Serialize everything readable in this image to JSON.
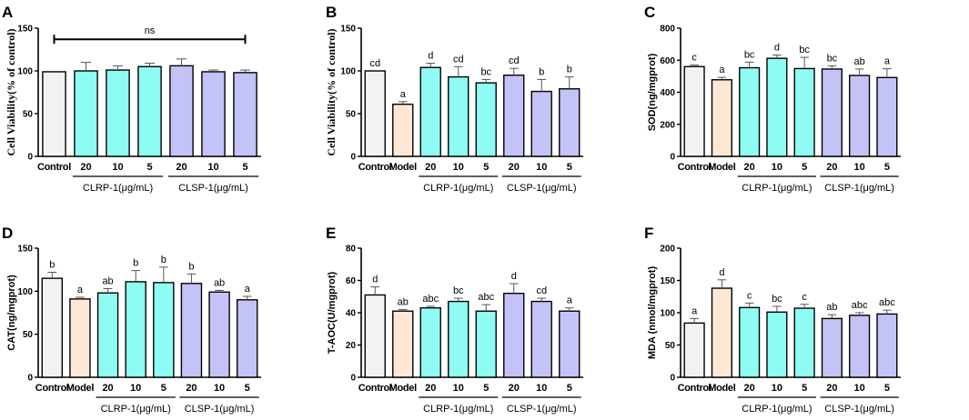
{
  "colors": {
    "control": "#f2f2f2",
    "model": "#fde8d6",
    "clrp": "#8ffcf4",
    "clsp": "#c4c3f7",
    "edge": "#000000",
    "error": "#555555"
  },
  "chart_data": [
    {
      "panel": "A",
      "type": "bar",
      "ylabel": "Cell Viability(% of control)",
      "ylim": [
        0,
        150
      ],
      "yticks": [
        0,
        50,
        100,
        150
      ],
      "categories": [
        "Control",
        "20",
        "10",
        "5",
        "20",
        "10",
        "5"
      ],
      "groups": [
        "control",
        "clrp",
        "clrp",
        "clrp",
        "clsp",
        "clsp",
        "clsp"
      ],
      "values": [
        99,
        100,
        101,
        105,
        106,
        99,
        98
      ],
      "errors": [
        0,
        10,
        5,
        4,
        8,
        2,
        3
      ],
      "sig": [
        "",
        "",
        "",
        "",
        "",
        "",
        ""
      ],
      "bracket": {
        "from": 0,
        "to": 6,
        "y": 137,
        "label": "ns"
      },
      "group_labels": [
        {
          "text": "CLRP-1(μg/mL)",
          "from": 1,
          "to": 3
        },
        {
          "text": "CLSP-1(μg/mL)",
          "from": 4,
          "to": 6
        }
      ]
    },
    {
      "panel": "B",
      "type": "bar",
      "ylabel": "Cell Viability(% of control)",
      "ylim": [
        0,
        150
      ],
      "yticks": [
        0,
        50,
        100,
        150
      ],
      "categories": [
        "Control",
        "Model",
        "20",
        "10",
        "5",
        "20",
        "10",
        "5"
      ],
      "groups": [
        "control",
        "model",
        "clrp",
        "clrp",
        "clrp",
        "clsp",
        "clsp",
        "clsp"
      ],
      "values": [
        100,
        61,
        104,
        93,
        86,
        95,
        76,
        79
      ],
      "errors": [
        0,
        3,
        5,
        12,
        4,
        8,
        14,
        14
      ],
      "sig": [
        "cd",
        "a",
        "d",
        "cd",
        "bc",
        "cd",
        "b",
        "b"
      ],
      "group_labels": [
        {
          "text": "CLRP-1(μg/mL)",
          "from": 2,
          "to": 4
        },
        {
          "text": "CLSP-1(μg/mL)",
          "from": 5,
          "to": 7
        }
      ]
    },
    {
      "panel": "C",
      "type": "bar",
      "ylabel": "SOD(ng/mgprot)",
      "ylim": [
        0,
        800
      ],
      "yticks": [
        0,
        200,
        400,
        600,
        800
      ],
      "categories": [
        "Control",
        "Model",
        "20",
        "10",
        "5",
        "20",
        "10",
        "5"
      ],
      "groups": [
        "control",
        "model",
        "clrp",
        "clrp",
        "clrp",
        "clsp",
        "clsp",
        "clsp"
      ],
      "values": [
        560,
        478,
        553,
        612,
        548,
        545,
        505,
        492
      ],
      "errors": [
        10,
        15,
        35,
        20,
        70,
        20,
        40,
        55
      ],
      "sig": [
        "c",
        "a",
        "bc",
        "d",
        "bc",
        "bc",
        "ab",
        "a"
      ],
      "group_labels": [
        {
          "text": "CLRP-1(μg/mL)",
          "from": 2,
          "to": 4
        },
        {
          "text": "CLSP-1(μg/mL)",
          "from": 5,
          "to": 7
        }
      ]
    },
    {
      "panel": "D",
      "type": "bar",
      "ylabel": "CAT(ng/mgprot)",
      "ylim": [
        0,
        150
      ],
      "yticks": [
        0,
        50,
        100,
        150
      ],
      "categories": [
        "Control",
        "Model",
        "20",
        "10",
        "5",
        "20",
        "10",
        "5"
      ],
      "groups": [
        "control",
        "model",
        "clrp",
        "clrp",
        "clrp",
        "clsp",
        "clsp",
        "clsp"
      ],
      "values": [
        115,
        91,
        98,
        111,
        110,
        109,
        99,
        90
      ],
      "errors": [
        7,
        2,
        5,
        13,
        18,
        11,
        2,
        4
      ],
      "sig": [
        "b",
        "a",
        "ab",
        "b",
        "b",
        "b",
        "ab",
        "a"
      ],
      "group_labels": [
        {
          "text": "CLRP-1(μg/mL)",
          "from": 2,
          "to": 4
        },
        {
          "text": "CLSP-1(μg/mL)",
          "from": 5,
          "to": 7
        }
      ]
    },
    {
      "panel": "E",
      "type": "bar",
      "ylabel": "T-AOC(U/mgprot)",
      "ylim": [
        0,
        80
      ],
      "yticks": [
        0,
        20,
        40,
        60,
        80
      ],
      "categories": [
        "Control",
        "Model",
        "20",
        "10",
        "5",
        "20",
        "10",
        "5"
      ],
      "groups": [
        "control",
        "model",
        "clrp",
        "clrp",
        "clrp",
        "clsp",
        "clsp",
        "clsp"
      ],
      "values": [
        51,
        41,
        43,
        47,
        41,
        52,
        47,
        41
      ],
      "errors": [
        5,
        1,
        1,
        2,
        4,
        6,
        2,
        2
      ],
      "sig": [
        "d",
        "ab",
        "abc",
        "bc",
        "abc",
        "d",
        "cd",
        "a"
      ],
      "group_labels": [
        {
          "text": "CLRP-1(μg/mL)",
          "from": 2,
          "to": 4
        },
        {
          "text": "CLSP-1(μg/mL)",
          "from": 5,
          "to": 7
        }
      ]
    },
    {
      "panel": "F",
      "type": "bar",
      "ylabel": "MDA (nmol/mgprot)",
      "ylim": [
        0,
        200
      ],
      "yticks": [
        0,
        50,
        100,
        150,
        200
      ],
      "categories": [
        "Control",
        "Model",
        "20",
        "10",
        "5",
        "20",
        "10",
        "5"
      ],
      "groups": [
        "control",
        "model",
        "clrp",
        "clrp",
        "clrp",
        "clsp",
        "clsp",
        "clsp"
      ],
      "values": [
        84,
        138,
        108,
        101,
        107,
        91,
        96,
        98
      ],
      "errors": [
        7,
        13,
        7,
        9,
        6,
        6,
        4,
        6
      ],
      "sig": [
        "a",
        "d",
        "c",
        "bc",
        "c",
        "ab",
        "abc",
        "abc"
      ],
      "group_labels": [
        {
          "text": "CLRP-1(μg/mL)",
          "from": 2,
          "to": 4
        },
        {
          "text": "CLSP-1(μg/mL)",
          "from": 5,
          "to": 7
        }
      ]
    }
  ]
}
